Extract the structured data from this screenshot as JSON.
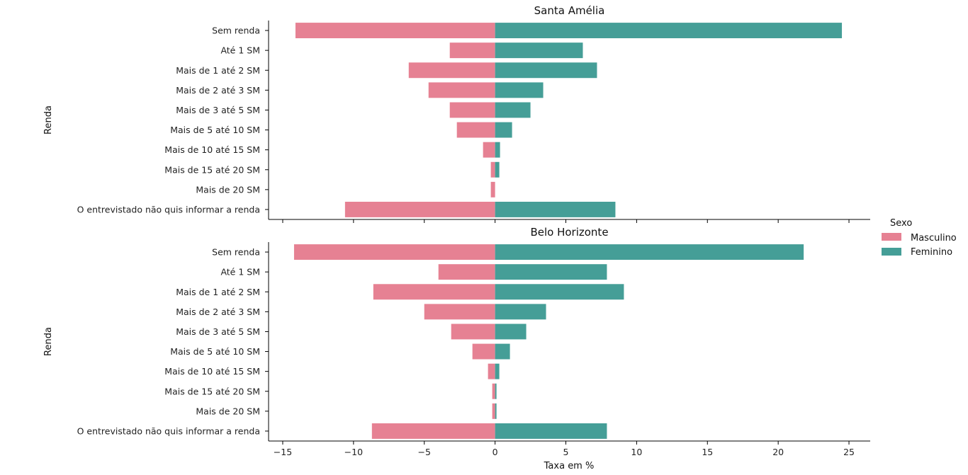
{
  "chart_data": {
    "type": "bar",
    "orientation": "horizontal",
    "legend": {
      "title": "Sexo",
      "placement": "right",
      "entries": [
        "Masculino",
        "Feminino"
      ]
    },
    "colors": {
      "Masculino": "#e68193",
      "Feminino": "#459e97"
    },
    "xlabel": "Taxa em %",
    "ylabel": "Renda",
    "xlim": [
      -16,
      26.5
    ],
    "xticks": [
      -15,
      -10,
      -5,
      0,
      5,
      10,
      15,
      20,
      25
    ],
    "xtick_labels": [
      "−15",
      "−10",
      "−5",
      "0",
      "5",
      "10",
      "15",
      "20",
      "25"
    ],
    "categories": [
      "Sem renda",
      "Até 1 SM",
      "Mais de 1 até 2 SM",
      "Mais de 2 até 3 SM",
      "Mais de 3 até 5 SM",
      "Mais de 5 até 10 SM",
      "Mais de 10 até 15 SM",
      "Mais de 15 até 20 SM",
      "Mais de 20 SM",
      "O entrevistado não quis informar a renda"
    ],
    "panels": [
      {
        "title": "Santa Amélia",
        "series": [
          {
            "name": "Masculino",
            "values": [
              -14.1,
              -3.2,
              -6.1,
              -4.7,
              -3.2,
              -2.7,
              -0.85,
              -0.3,
              -0.3,
              -10.6
            ]
          },
          {
            "name": "Feminino",
            "values": [
              24.5,
              6.2,
              7.2,
              3.4,
              2.5,
              1.2,
              0.35,
              0.3,
              0,
              8.5
            ]
          }
        ]
      },
      {
        "title": "Belo Horizonte",
        "series": [
          {
            "name": "Masculino",
            "values": [
              -14.2,
              -4.0,
              -8.6,
              -5.0,
              -3.1,
              -1.6,
              -0.5,
              -0.2,
              -0.2,
              -8.7
            ]
          },
          {
            "name": "Feminino",
            "values": [
              21.8,
              7.9,
              9.1,
              3.6,
              2.2,
              1.05,
              0.3,
              0.1,
              0.1,
              7.9
            ]
          }
        ]
      }
    ]
  }
}
